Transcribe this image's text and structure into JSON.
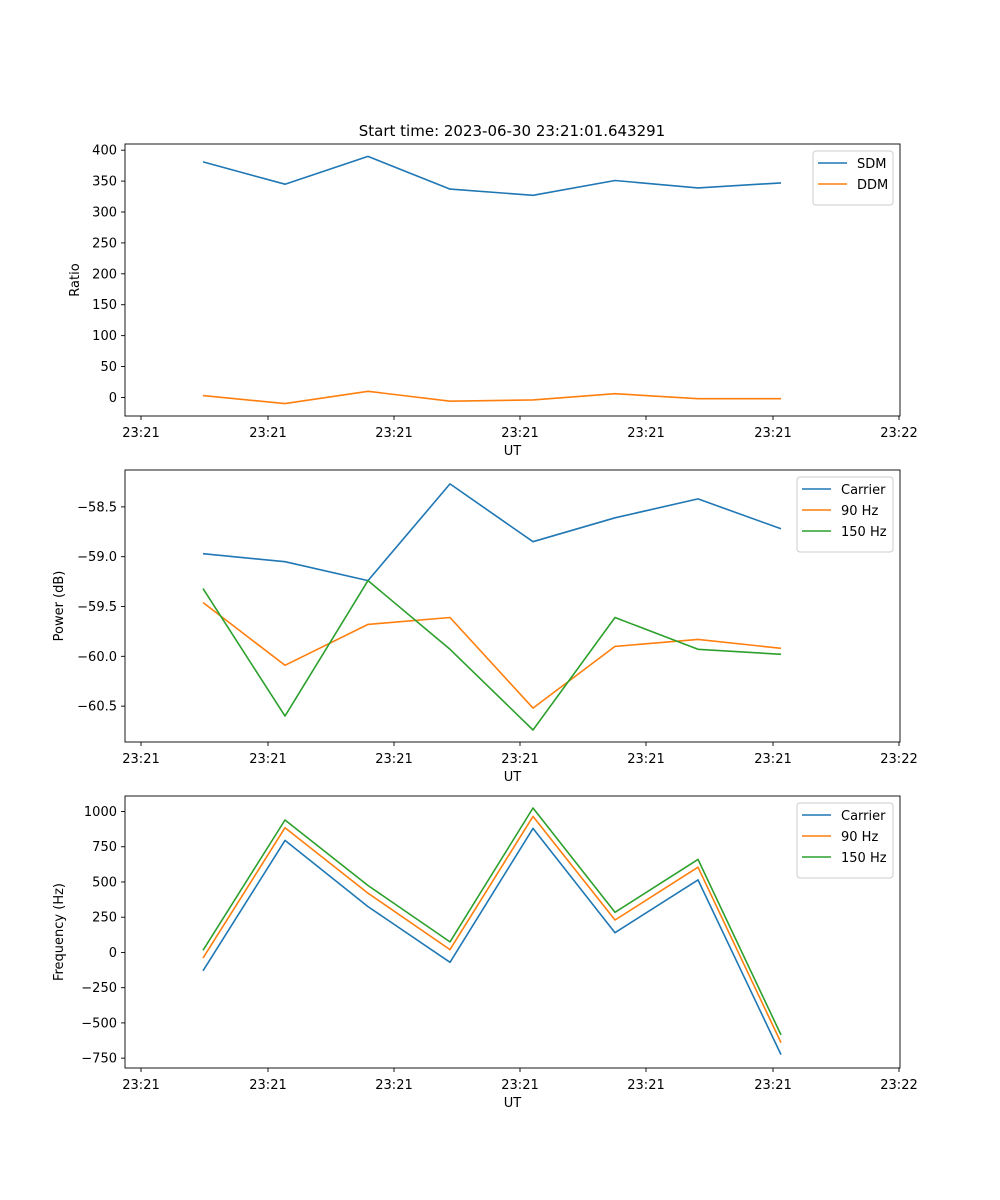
{
  "figure": {
    "title": "Start time: 2023-06-30 23:21:01.643291"
  },
  "chart_data": [
    {
      "type": "line",
      "title": "Start time: 2023-06-30 23:21:01.643291",
      "xlabel": "UT",
      "ylabel": "Ratio",
      "x_tick_labels": [
        "23:21",
        "23:21",
        "23:21",
        "23:21",
        "23:21",
        "23:21",
        "23:22"
      ],
      "y_ticks": [
        0,
        50,
        100,
        150,
        200,
        250,
        300,
        350,
        400
      ],
      "ylim": [
        -30,
        410
      ],
      "grid": false,
      "legend": "top-right",
      "series": [
        {
          "name": "SDM",
          "color": "#1f77b4",
          "values": [
            381,
            345,
            390,
            337,
            327,
            351,
            339,
            347
          ]
        },
        {
          "name": "DDM",
          "color": "#ff7f0e",
          "values": [
            3,
            -10,
            10,
            -6,
            -4,
            6,
            -2,
            -2
          ]
        }
      ]
    },
    {
      "type": "line",
      "title": "",
      "xlabel": "UT",
      "ylabel": "Power (dB)",
      "x_tick_labels": [
        "23:21",
        "23:21",
        "23:21",
        "23:21",
        "23:21",
        "23:21",
        "23:22"
      ],
      "y_ticks": [
        -58.5,
        -59.0,
        -59.5,
        -60.0,
        -60.5
      ],
      "y_tick_labels": [
        "−58.5",
        "−59.0",
        "−59.5",
        "−60.0",
        "−60.5"
      ],
      "ylim": [
        -60.86,
        -58.13
      ],
      "grid": false,
      "legend": "top-right",
      "series": [
        {
          "name": "Carrier",
          "color": "#1f77b4",
          "values": [
            -58.97,
            -59.05,
            -59.24,
            -58.27,
            -58.85,
            -58.61,
            -58.42,
            -58.72
          ]
        },
        {
          "name": "90 Hz",
          "color": "#ff7f0e",
          "values": [
            -59.46,
            -60.09,
            -59.68,
            -59.61,
            -60.52,
            -59.9,
            -59.83,
            -59.92
          ]
        },
        {
          "name": "150 Hz",
          "color": "#2ca02c",
          "values": [
            -59.32,
            -60.6,
            -59.24,
            -59.93,
            -60.74,
            -59.61,
            -59.93,
            -59.98
          ]
        }
      ]
    },
    {
      "type": "line",
      "title": "",
      "xlabel": "UT",
      "ylabel": "Frequency (Hz)",
      "x_tick_labels": [
        "23:21",
        "23:21",
        "23:21",
        "23:21",
        "23:21",
        "23:21",
        "23:22"
      ],
      "y_ticks": [
        1000,
        750,
        500,
        250,
        0,
        -250,
        -500,
        -750
      ],
      "y_tick_labels": [
        "1000",
        "750",
        "500",
        "250",
        "0",
        "−250",
        "−500",
        "−750"
      ],
      "ylim": [
        -820,
        1110
      ],
      "grid": false,
      "legend": "top-right",
      "series": [
        {
          "name": "Carrier",
          "color": "#1f77b4",
          "values": [
            -130,
            795,
            325,
            -70,
            880,
            140,
            515,
            -725
          ]
        },
        {
          "name": "90 Hz",
          "color": "#ff7f0e",
          "values": [
            -40,
            885,
            420,
            20,
            965,
            230,
            605,
            -640
          ]
        },
        {
          "name": "150 Hz",
          "color": "#2ca02c",
          "values": [
            15,
            940,
            475,
            75,
            1025,
            285,
            660,
            -585
          ]
        }
      ]
    }
  ]
}
